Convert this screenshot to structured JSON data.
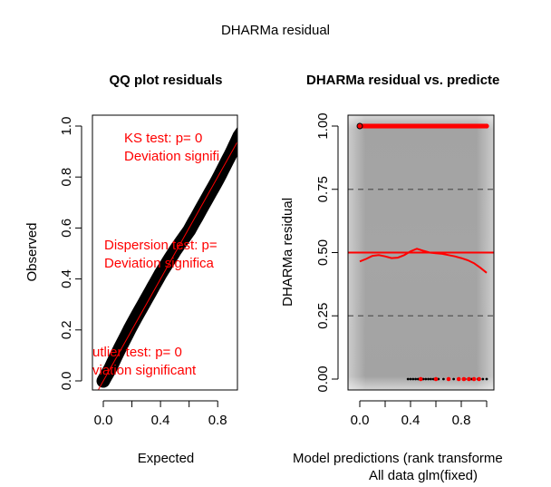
{
  "figure": {
    "title": "DHARMa residual"
  },
  "chart_data": [
    {
      "type": "scatter",
      "title": "QQ plot residuals",
      "xlabel": "Expected",
      "ylabel": "Observed",
      "xlim": [
        0,
        1
      ],
      "ylim": [
        0,
        1
      ],
      "xticks": [
        0.0,
        0.4,
        0.8
      ],
      "xtick_labels": [
        "0.0",
        "0.4",
        "0.8"
      ],
      "yticks": [
        0.0,
        0.2,
        0.4,
        0.6,
        0.8,
        1.0
      ],
      "ytick_labels": [
        "0.0",
        "0.2",
        "0.4",
        "0.6",
        "0.8",
        "1.0"
      ],
      "qq_curve": {
        "x": [
          0.0,
          0.05,
          0.1,
          0.2,
          0.3,
          0.4,
          0.5,
          0.6,
          0.7,
          0.8,
          0.9,
          0.95,
          1.0
        ],
        "y": [
          0.0,
          0.05,
          0.11,
          0.22,
          0.32,
          0.42,
          0.51,
          0.59,
          0.69,
          0.79,
          0.9,
          0.96,
          1.0
        ]
      },
      "reference_line": {
        "x": [
          -0.05,
          1.05
        ],
        "y": [
          -0.05,
          1.05
        ],
        "color": "#ff0000"
      },
      "point_color": "#000000",
      "annotations": [
        {
          "lines": [
            "KS test: p= 0",
            "Deviation  signifi"
          ],
          "color": "#ff0000"
        },
        {
          "lines": [
            "Dispersion test: p=",
            "Deviation  significa"
          ],
          "color": "#ff0000"
        },
        {
          "lines": [
            "utlier test: p= 0",
            "viation  significant"
          ],
          "color": "#ff0000"
        }
      ]
    },
    {
      "type": "scatter",
      "title": "DHARMa residual vs. predicte",
      "xlabel": "Model predictions (rank transforme",
      "xlabel2": "All data glm(fixed)",
      "ylabel": "DHARMa residual",
      "xlim": [
        0,
        1
      ],
      "ylim": [
        0,
        1
      ],
      "xticks": [
        0.0,
        0.4,
        0.8
      ],
      "xtick_labels": [
        "0.0",
        "0.4",
        "0.8"
      ],
      "yticks": [
        0.0,
        0.25,
        0.5,
        0.75,
        1.0
      ],
      "ytick_labels": [
        "0.00",
        "0.25",
        "0.50",
        "0.75",
        "1.00"
      ],
      "dashed_lines": [
        0.25,
        0.75
      ],
      "solid_line": {
        "y": 0.5,
        "color": "#ff0000"
      },
      "smooth_curve": {
        "x": [
          0.0,
          0.05,
          0.1,
          0.15,
          0.2,
          0.25,
          0.3,
          0.35,
          0.4,
          0.45,
          0.5,
          0.55,
          0.6,
          0.65,
          0.7,
          0.75,
          0.8,
          0.85,
          0.9,
          0.95,
          1.0
        ],
        "y": [
          0.465,
          0.475,
          0.487,
          0.49,
          0.485,
          0.478,
          0.48,
          0.49,
          0.505,
          0.515,
          0.507,
          0.5,
          0.497,
          0.495,
          0.49,
          0.485,
          0.478,
          0.47,
          0.458,
          0.44,
          0.42
        ],
        "color": "#ff0000"
      },
      "top_points": {
        "y": 1.0,
        "x_range": [
          0.0,
          1.0
        ],
        "color": "#ff0000",
        "outlier_x": 0.0
      },
      "bottom_points": {
        "black_x": [
          0.38,
          0.4,
          0.42,
          0.44,
          0.46,
          0.48,
          0.5,
          0.52,
          0.54,
          0.56,
          0.58,
          0.62,
          0.66,
          0.7,
          0.74,
          0.78,
          0.83,
          0.88,
          0.93,
          0.97,
          1.0
        ],
        "red_x": [
          0.48,
          0.6,
          0.7,
          0.78,
          0.82,
          0.86,
          0.9,
          0.94
        ],
        "y": 0.0
      }
    }
  ]
}
